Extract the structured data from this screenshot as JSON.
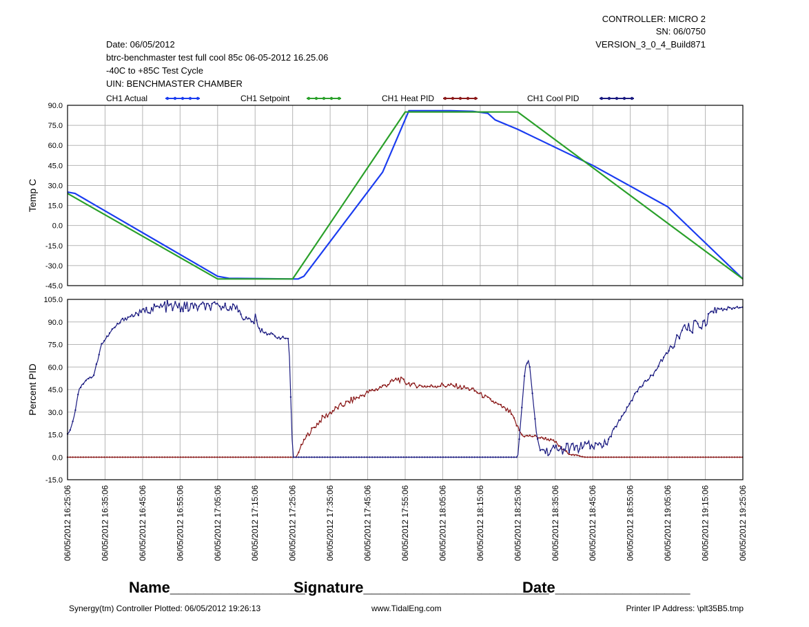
{
  "header": {
    "controller": "CONTROLLER: MICRO 2",
    "sn": "SN:  06/0750",
    "version": "VERSION_3_0_4_Build871",
    "date": "Date: 06/05/2012",
    "test_name": "btrc-benchmaster test full cool 85c 06-05-2012 16.25.06",
    "cycle": "-40C to +85C Test Cycle",
    "uin": "UIN: BENCHMASTER CHAMBER"
  },
  "legend": [
    {
      "label": "CH1 Actual",
      "color": "#1a3cf0"
    },
    {
      "label": "CH1 Setpoint",
      "color": "#2aa02a"
    },
    {
      "label": "CH1 Heat PID",
      "color": "#8b1a1a"
    },
    {
      "label": "CH1 Cool PID",
      "color": "#1a1a80"
    }
  ],
  "chart_data": [
    {
      "type": "line",
      "ylabel": "Temp C",
      "ylim": [
        -45,
        90
      ],
      "yticks": [
        "90.0",
        "75.0",
        "60.0",
        "45.0",
        "30.0",
        "15.0",
        "0.0",
        "-15.0",
        "-30.0",
        "-45.0"
      ],
      "x_minutes_range": [
        0,
        180
      ],
      "series": [
        {
          "name": "CH1 Actual",
          "color": "#1a3cf0",
          "x": [
            0,
            2,
            40,
            43,
            60,
            61.5,
            63,
            84,
            91,
            102,
            108,
            112,
            114,
            120,
            140,
            160,
            180
          ],
          "y": [
            25,
            24,
            -38,
            -39.5,
            -40,
            -40,
            -38,
            40,
            86,
            86,
            85.5,
            84,
            79,
            72,
            45,
            14,
            -40
          ]
        },
        {
          "name": "CH1 Setpoint",
          "color": "#2aa02a",
          "x": [
            0,
            40,
            60,
            90,
            120,
            180
          ],
          "y": [
            24,
            -40,
            -40,
            85,
            85,
            -40
          ]
        }
      ]
    },
    {
      "type": "line",
      "ylabel": "Percent PID",
      "ylim": [
        -15,
        105
      ],
      "yticks": [
        "105.0",
        "90.0",
        "75.0",
        "60.0",
        "45.0",
        "30.0",
        "15.0",
        "0.0",
        "-15.0"
      ],
      "x_minutes_range": [
        0,
        180
      ],
      "series": [
        {
          "name": "CH1 Heat PID",
          "color": "#8b1a1a",
          "x": [
            0,
            60,
            61,
            62,
            64,
            68,
            72,
            76,
            80,
            84,
            88,
            90,
            92,
            96,
            100,
            104,
            108,
            118,
            120,
            121,
            122,
            124,
            126,
            128,
            130,
            132,
            134,
            136,
            138,
            140,
            180
          ],
          "y": [
            0,
            0,
            0,
            6,
            15,
            26,
            33,
            38,
            43,
            47,
            52,
            50,
            48,
            47,
            48,
            47,
            45,
            30,
            20,
            15,
            14,
            14,
            13,
            12,
            10,
            5,
            2,
            1,
            0,
            0,
            0
          ],
          "noise": [
            0,
            0,
            0,
            1,
            1.5,
            2,
            2,
            2,
            1.5,
            2,
            2,
            2,
            1.5,
            1.5,
            2,
            1.5,
            1.5,
            1.5,
            1.5,
            1,
            1,
            1,
            1,
            1,
            1,
            0.8,
            0.5,
            0.5,
            0,
            0,
            0
          ]
        },
        {
          "name": "CH1 Cool PID",
          "color": "#1a1a80",
          "x": [
            0,
            1,
            2,
            3,
            5,
            7,
            9,
            10,
            12,
            15,
            20,
            25,
            35,
            40,
            45,
            48,
            50,
            51,
            52,
            56,
            58,
            59,
            60,
            62,
            100,
            120,
            121,
            122,
            123,
            124,
            125,
            126,
            128,
            130,
            134,
            138,
            142,
            144,
            146,
            148,
            152,
            156,
            160,
            164,
            170,
            172,
            180
          ],
          "y": [
            15,
            20,
            30,
            45,
            52,
            54,
            75,
            78,
            85,
            92,
            97,
            100,
            100,
            100,
            100,
            90,
            92,
            85,
            84,
            80,
            79,
            79,
            0,
            0,
            0,
            0,
            30,
            60,
            65,
            40,
            15,
            5,
            4,
            5,
            6,
            7,
            8,
            10,
            20,
            28,
            45,
            55,
            70,
            84,
            90,
            98,
            100
          ],
          "noise": [
            0.5,
            0.5,
            0.5,
            0.5,
            1,
            1,
            1,
            1,
            1,
            1.5,
            2,
            4,
            4,
            3,
            2,
            4,
            4,
            2,
            1.5,
            1,
            1,
            1,
            0,
            0,
            0,
            0,
            0,
            0,
            0,
            0,
            1,
            2,
            3,
            4,
            4,
            4,
            3,
            2,
            1,
            1,
            1,
            1,
            2,
            4,
            4,
            2,
            0.5
          ]
        }
      ]
    }
  ],
  "x_tick_labels": [
    "06/05/2012 16:25:06",
    "06/05/2012 16:35:06",
    "06/05/2012 16:45:06",
    "06/05/2012 16:55:06",
    "06/05/2012 17:05:06",
    "06/05/2012 17:15:06",
    "06/05/2012 17:25:06",
    "06/05/2012 17:35:06",
    "06/05/2012 17:45:06",
    "06/05/2012 17:55:06",
    "06/05/2012 18:05:06",
    "06/05/2012 18:15:06",
    "06/05/2012 18:25:06",
    "06/05/2012 18:35:06",
    "06/05/2012 18:45:06",
    "06/05/2012 18:55:06",
    "06/05/2012 19:05:06",
    "06/05/2012 19:15:06",
    "06/05/2012 19:25:06"
  ],
  "signature": {
    "name": "Name________________",
    "signature": "Signature______________________",
    "date": "Date________________"
  },
  "footer": {
    "plotted": "Synergy(tm) Controller Plotted: 06/05/2012 19:26:13",
    "website": "www.TidalEng.com",
    "printer": "Printer IP Address: \\plt35B5.tmp"
  }
}
